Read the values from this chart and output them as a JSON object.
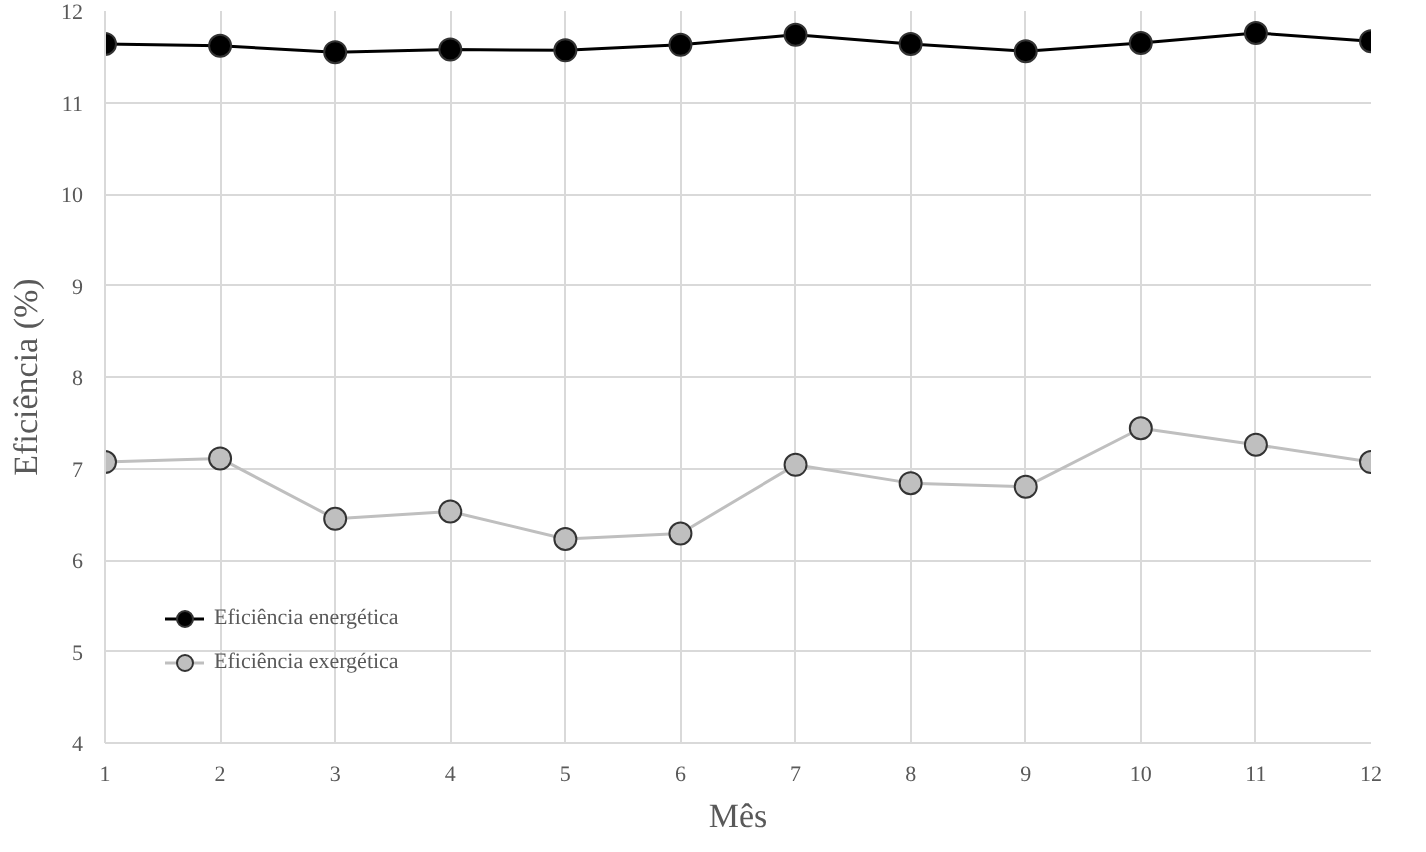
{
  "chart_data": {
    "type": "line",
    "xlabel": "Mês",
    "ylabel": "Eficiência (%)",
    "x": [
      1,
      2,
      3,
      4,
      5,
      6,
      7,
      8,
      9,
      10,
      11,
      12
    ],
    "xlim": [
      1,
      12
    ],
    "xticks": [
      1,
      2,
      3,
      4,
      5,
      6,
      7,
      8,
      9,
      10,
      11,
      12
    ],
    "ylim": [
      4,
      12
    ],
    "yticks": [
      4,
      5,
      6,
      7,
      8,
      9,
      10,
      11,
      12
    ],
    "grid": true,
    "legend": "bottom left",
    "marker": "circle",
    "line_style": "solid",
    "series": [
      {
        "name": "Eficiência energética",
        "color": "#000000",
        "values": [
          11.64,
          11.62,
          11.55,
          11.58,
          11.57,
          11.63,
          11.74,
          11.64,
          11.56,
          11.65,
          11.76,
          11.67
        ]
      },
      {
        "name": "Eficiência exergética",
        "color": "#bfbfbf",
        "values": [
          7.07,
          7.11,
          6.45,
          6.53,
          6.23,
          6.29,
          7.04,
          6.84,
          6.8,
          7.44,
          7.26,
          7.07
        ]
      }
    ]
  }
}
